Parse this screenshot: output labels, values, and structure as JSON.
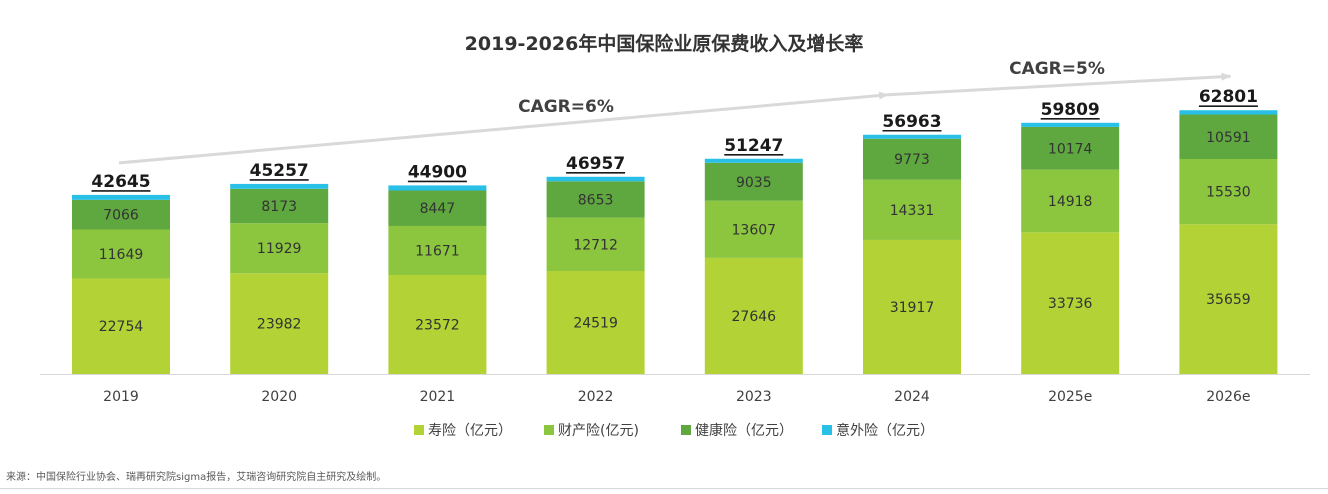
{
  "chart_data": {
    "type": "bar",
    "stacked": true,
    "title": "2019-2026年中国保险业原保费收入及增长率",
    "categories": [
      "2019",
      "2020",
      "2021",
      "2022",
      "2023",
      "2024",
      "2025e",
      "2026e"
    ],
    "series": [
      {
        "name": "寿险（亿元）",
        "color": "#b2d235",
        "values": [
          22754,
          23982,
          23572,
          24519,
          27646,
          31917,
          33736,
          35659
        ]
      },
      {
        "name": "财产险(亿元)",
        "color": "#8cc63f",
        "values": [
          11649,
          11929,
          11671,
          12712,
          13607,
          14331,
          14918,
          15530
        ]
      },
      {
        "name": "健康险（亿元）",
        "color": "#5fa83f",
        "values": [
          7066,
          8173,
          8447,
          8653,
          9035,
          9773,
          10174,
          10591
        ]
      },
      {
        "name": "意外险（亿元）",
        "color": "#29c0e8",
        "values": [
          1176,
          1173,
          1210,
          1073,
          959,
          942,
          981,
          1021
        ]
      }
    ],
    "totals": [
      42645,
      45257,
      44900,
      46957,
      51247,
      56963,
      59809,
      62801
    ],
    "annotations": [
      {
        "text": "CAGR=6%"
      },
      {
        "text": "CAGR=5%"
      }
    ],
    "legend_position": "bottom",
    "ylim": [
      0,
      70000
    ],
    "xlabel": "",
    "ylabel": ""
  },
  "source": "来源：中国保险行业协会、瑞再研究院sigma报告，艾瑞咨询研究院自主研究及绘制。"
}
